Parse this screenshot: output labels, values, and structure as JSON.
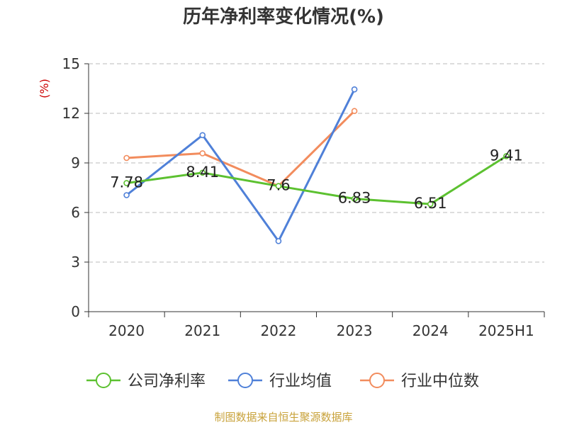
{
  "chart_data": {
    "type": "line",
    "title": "历年净利率变化情况(%)",
    "unit_label": "(%)",
    "categories": [
      "2020",
      "2021",
      "2022",
      "2023",
      "2024",
      "2025H1"
    ],
    "ylim": [
      0,
      15
    ],
    "yticks": [
      "0",
      "3",
      "6",
      "9",
      "12",
      "15"
    ],
    "grid": true,
    "legend_position": "bottom",
    "series": [
      {
        "name": "公司净利率",
        "color": "#5cc130",
        "values": [
          7.78,
          8.41,
          7.6,
          6.83,
          6.51,
          9.41
        ],
        "labels": [
          "7.78",
          "8.41",
          "7.6",
          "6.83",
          "6.51",
          "9.41"
        ]
      },
      {
        "name": "行业均值",
        "color": "#4f80d8",
        "values": [
          7.05,
          10.68,
          4.27,
          13.45,
          null,
          null
        ]
      },
      {
        "name": "行业中位数",
        "color": "#f28c5d",
        "values": [
          9.3,
          9.58,
          7.6,
          12.14,
          null,
          null
        ]
      }
    ]
  },
  "source": "制图数据来自恒生聚源数据库"
}
